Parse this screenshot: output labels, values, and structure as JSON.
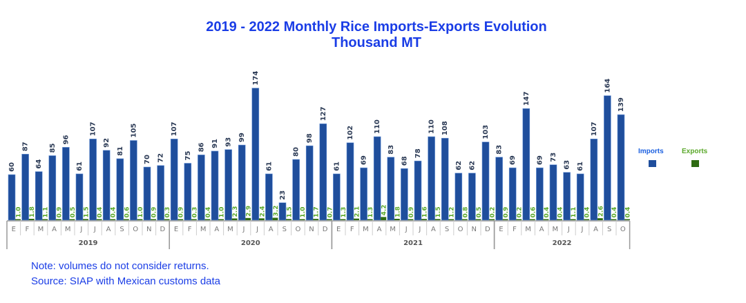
{
  "chart_data": {
    "type": "bar",
    "title": "2019 - 2022 Monthly Rice Imports-Exports Evolution",
    "subtitle": "Thousand MT",
    "years": [
      {
        "label": "2019",
        "months": [
          "E",
          "F",
          "M",
          "A",
          "M",
          "J",
          "J",
          "A",
          "S",
          "O",
          "N",
          "D"
        ]
      },
      {
        "label": "2020",
        "months": [
          "E",
          "F",
          "M",
          "A",
          "M",
          "J",
          "J",
          "A",
          "S",
          "O",
          "N",
          "D"
        ]
      },
      {
        "label": "2021",
        "months": [
          "E",
          "F",
          "M",
          "A",
          "M",
          "J",
          "J",
          "A",
          "S",
          "O",
          "N",
          "D"
        ]
      },
      {
        "label": "2022",
        "months": [
          "E",
          "F",
          "M",
          "A",
          "M",
          "J",
          "J",
          "A",
          "S",
          "O"
        ]
      }
    ],
    "series": [
      {
        "name": "Imports",
        "color": "#1f4e9c",
        "label_color": "#2b3a55",
        "values": [
          60,
          87,
          64,
          85,
          96,
          61,
          107,
          92,
          81,
          105,
          70,
          72,
          107,
          75,
          86,
          91,
          93,
          99,
          174,
          61,
          23,
          80,
          98,
          127,
          61,
          102,
          69,
          110,
          83,
          68,
          78,
          110,
          108,
          62,
          62,
          103,
          83,
          69,
          147,
          69,
          73,
          63,
          61,
          107,
          164,
          139
        ],
        "labels": [
          "60",
          "87",
          "64",
          "85",
          "96",
          "61",
          "107",
          "92",
          "81",
          "105",
          "70",
          "72",
          "107",
          "75",
          "86",
          "91",
          "93",
          "99",
          "174",
          "61",
          "23",
          "80",
          "98",
          "127",
          "61",
          "102",
          "69",
          "110",
          "83",
          "68",
          "78",
          "110",
          "108",
          "62",
          "62",
          "103",
          "83",
          "69",
          "147",
          "69",
          "73",
          "63",
          "61",
          "107",
          "164",
          "139"
        ]
      },
      {
        "name": "Exports",
        "color": "#2e6b12",
        "label_color": "#5aa82a",
        "values": [
          1.0,
          1.8,
          1.1,
          0.9,
          0.5,
          1.5,
          0.4,
          0.4,
          0.6,
          1.0,
          0.9,
          0.3,
          0.9,
          0.3,
          0.4,
          1.0,
          2.3,
          2.9,
          2.4,
          3.2,
          1.5,
          1.0,
          1.7,
          0.7,
          1.3,
          2.1,
          1.3,
          4.2,
          1.8,
          0.9,
          1.6,
          1.5,
          1.2,
          0.8,
          0.5,
          0.2,
          0.9,
          0.2,
          0.6,
          0.4,
          0.4,
          1.1,
          0.4,
          2.6,
          0.4,
          0.4
        ],
        "labels": [
          "1.0",
          "1.8",
          "1.1",
          "0.9",
          "0.5",
          "1.5",
          "0.4",
          "0.4",
          "0.6",
          "1.0",
          "0.9",
          "0.3",
          "0.9",
          "0.3",
          "0.4",
          "1.0",
          "2.3",
          "2.9",
          "2.4",
          "3.2",
          "1.5",
          "1.0",
          "1.7",
          "0.7",
          "1.3",
          "2.1",
          "1.3",
          "4.2",
          "1.8",
          "0.9",
          "1.6",
          "1.5",
          "1.2",
          "0.8",
          "0.5",
          "0.2",
          "0.9",
          "0.2",
          "0.6",
          "0.4",
          "0.4",
          "1.1",
          "0.4",
          "2.6",
          "0.4",
          "0.4"
        ]
      }
    ],
    "legend": {
      "placement": "right",
      "imports_label": "Imports",
      "exports_label": "Exports",
      "imports_text_color": "#1a5fe0",
      "exports_text_color": "#5aa82a"
    },
    "grid": false
  },
  "notes": {
    "line1": "Note: volumes do not consider returns.",
    "line2": "Source: SIAP with Mexican customs data"
  }
}
